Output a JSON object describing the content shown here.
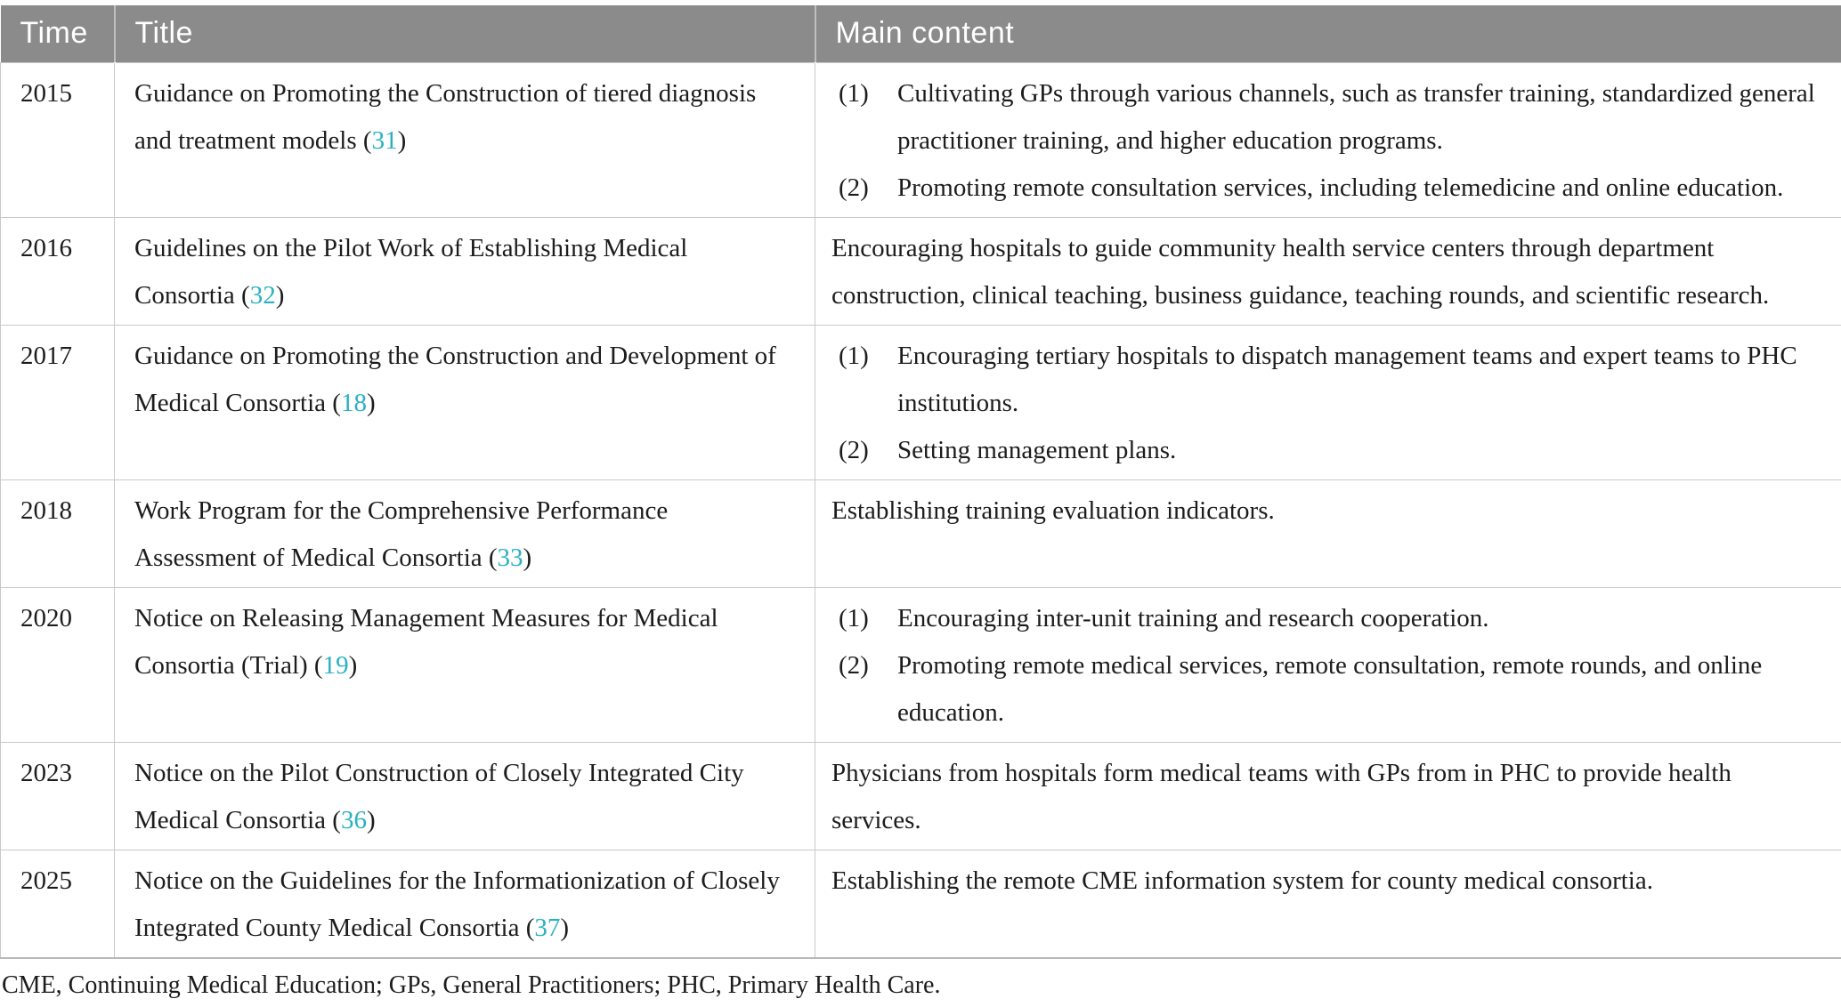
{
  "colors": {
    "header_bg": "#8b8b8b",
    "header_text": "#ffffff",
    "citation_teal": "#29b1c3",
    "body_text": "#1c1c1c",
    "border_gray": "#c9c9c9"
  },
  "table": {
    "columns": [
      {
        "key": "time",
        "label": "Time"
      },
      {
        "key": "title",
        "label": "Title"
      },
      {
        "key": "content",
        "label": "Main content"
      }
    ],
    "rows": [
      {
        "time": "2015",
        "title": "Guidance on Promoting the Construction of tiered diagnosis and treatment models",
        "ref": "31",
        "content": [
          {
            "num": "(1)",
            "text": "Cultivating GPs through various channels, such as transfer training, standardized general practitioner training, and higher education programs."
          },
          {
            "num": "(2)",
            "text": "Promoting remote consultation services, including telemedicine and online education."
          }
        ]
      },
      {
        "time": "2016",
        "title": "Guidelines on the Pilot Work of Establishing Medical Consortia",
        "ref": "32",
        "content": [
          {
            "text": "Encouraging hospitals to guide community health service centers through department construction, clinical teaching, business guidance, teaching rounds, and scientific research."
          }
        ]
      },
      {
        "time": "2017",
        "title": "Guidance on Promoting the Construction and Development of Medical Consortia",
        "ref": "18",
        "content": [
          {
            "num": "(1)",
            "text": "Encouraging tertiary hospitals to dispatch management teams and expert teams to PHC institutions."
          },
          {
            "num": "(2)",
            "text": "Setting management plans."
          }
        ]
      },
      {
        "time": "2018",
        "title": "Work Program for the Comprehensive Performance Assessment of Medical Consortia",
        "ref": "33",
        "content": [
          {
            "text": "Establishing training evaluation indicators."
          }
        ]
      },
      {
        "time": "2020",
        "title": "Notice on Releasing Management Measures for Medical Consortia (Trial)",
        "ref": "19",
        "content": [
          {
            "num": "(1)",
            "text": "Encouraging inter-unit training and research cooperation."
          },
          {
            "num": "(2)",
            "text": "Promoting remote medical services, remote consultation, remote rounds, and online education."
          }
        ]
      },
      {
        "time": "2023",
        "title": "Notice on the Pilot Construction of Closely Integrated City Medical Consortia",
        "ref": "36",
        "content": [
          {
            "text": "Physicians from hospitals form medical teams with GPs from in PHC to provide health services."
          }
        ]
      },
      {
        "time": "2025",
        "title": "Notice on the Guidelines for the Informationization of Closely Integrated County Medical Consortia",
        "ref": "37",
        "content": [
          {
            "text": "Establishing the remote CME information system for county medical consortia."
          }
        ]
      }
    ],
    "ref_prefix": " (",
    "ref_suffix": ")"
  },
  "footnote": "CME, Continuing Medical Education; GPs, General Practitioners; PHC, Primary Health Care."
}
